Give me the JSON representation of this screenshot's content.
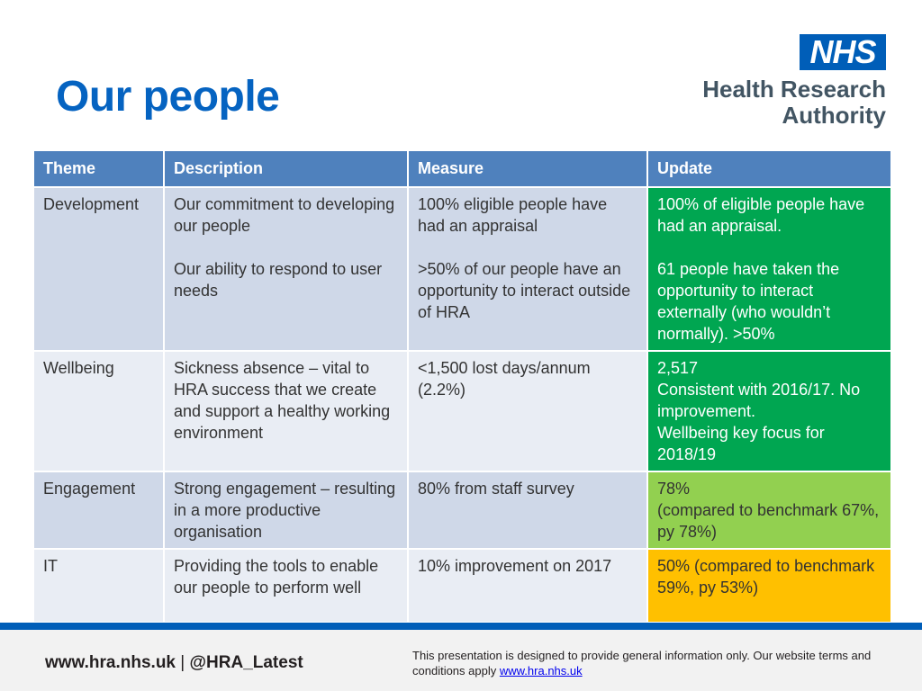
{
  "slide": {
    "title": "Our people"
  },
  "logo": {
    "nhs": "NHS",
    "line1": "Health Research",
    "line2": "Authority"
  },
  "table": {
    "headers": [
      "Theme",
      "Description",
      "Measure",
      "Update"
    ],
    "rows": [
      {
        "theme": "Development",
        "description": [
          "Our commitment to developing our people",
          "Our ability to respond to user needs"
        ],
        "measure": [
          "100% eligible people have had an appraisal",
          ">50% of our people have an opportunity to interact outside of HRA"
        ],
        "update": [
          "100% of eligible people have had an appraisal.",
          "61 people have taken the opportunity to interact externally (who wouldn’t normally). >50%"
        ],
        "status": "green",
        "status_color": "#00a651"
      },
      {
        "theme": "Wellbeing",
        "description": [
          "Sickness absence – vital to HRA success that we create and support a healthy working environment"
        ],
        "measure": [
          "<1,500 lost days/annum (2.2%)"
        ],
        "update": [
          "2,517",
          "Consistent with 2016/17. No improvement.",
          "Wellbeing key focus for 2018/19"
        ],
        "status": "green",
        "status_color": "#00a651"
      },
      {
        "theme": "Engagement",
        "description": [
          "Strong engagement – resulting in a more productive organisation"
        ],
        "measure": [
          "80% from staff survey"
        ],
        "update": [
          "78%",
          "(compared to benchmark 67%, py 78%)"
        ],
        "status": "light-green",
        "status_color": "#92d050"
      },
      {
        "theme": "IT",
        "description": [
          "Providing the tools to enable our people to perform well"
        ],
        "measure": [
          "10% improvement on 2017"
        ],
        "update": [
          "50% (compared to benchmark 59%, py 53%)"
        ],
        "status": "amber",
        "status_color": "#ffc000"
      }
    ]
  },
  "footer": {
    "website": "www.hra.nhs.uk",
    "separator": "|",
    "twitter": "@HRA_Latest",
    "disclaimer": "This presentation is designed to provide general information only. Our website terms and conditions apply",
    "link_text": "www.hra.nhs.uk"
  },
  "colors": {
    "title": "#0563c1",
    "header_bg": "#4f81bd",
    "nhs_blue": "#005eb8"
  }
}
